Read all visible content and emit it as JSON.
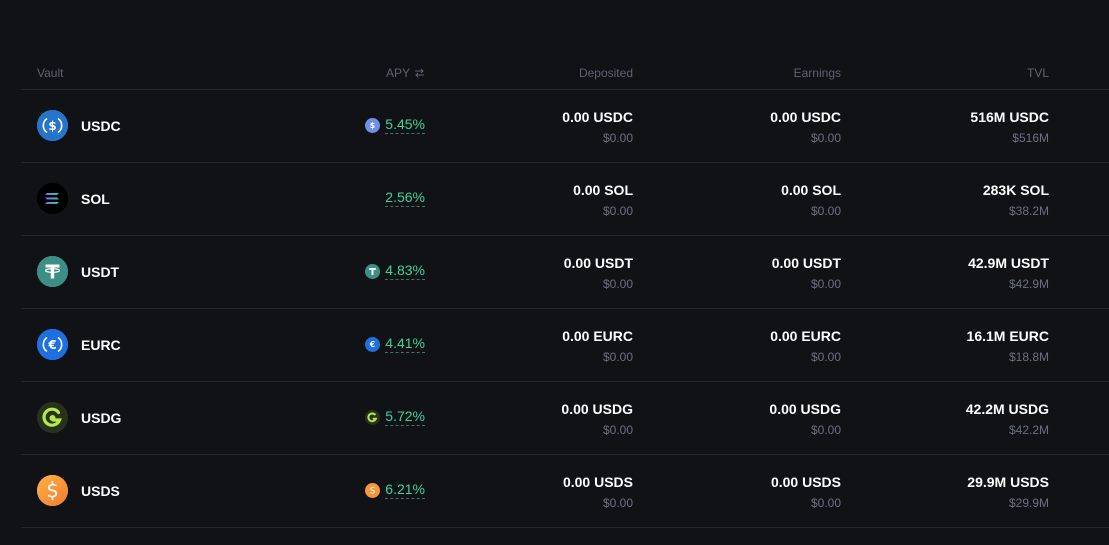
{
  "header": {
    "vault": "Vault",
    "apy": "APY",
    "deposited": "Deposited",
    "earnings": "Earnings",
    "tvl": "TVL"
  },
  "rows": [
    {
      "token": "USDC",
      "icon": "usdc-icon",
      "color": "#2775ca",
      "apy": "5.45%",
      "deposited": "0.00 USDC",
      "deposited_usd": "$0.00",
      "earnings": "0.00 USDC",
      "earnings_usd": "$0.00",
      "tvl": "516M USDC",
      "tvl_usd": "$516M"
    },
    {
      "token": "SOL",
      "icon": "sol-icon",
      "color": "#000000",
      "apy": "2.56%",
      "deposited": "0.00 SOL",
      "deposited_usd": "$0.00",
      "earnings": "0.00 SOL",
      "earnings_usd": "$0.00",
      "tvl": "283K SOL",
      "tvl_usd": "$38.2M"
    },
    {
      "token": "USDT",
      "icon": "usdt-icon",
      "color": "#3d8f86",
      "apy": "4.83%",
      "deposited": "0.00 USDT",
      "deposited_usd": "$0.00",
      "earnings": "0.00 USDT",
      "earnings_usd": "$0.00",
      "tvl": "42.9M USDT",
      "tvl_usd": "$42.9M"
    },
    {
      "token": "EURC",
      "icon": "eurc-icon",
      "color": "#1f6fe0",
      "apy": "4.41%",
      "deposited": "0.00 EURC",
      "deposited_usd": "$0.00",
      "earnings": "0.00 EURC",
      "earnings_usd": "$0.00",
      "tvl": "16.1M EURC",
      "tvl_usd": "$18.8M"
    },
    {
      "token": "USDG",
      "icon": "usdg-icon",
      "color": "#2a3a1a",
      "apy": "5.72%",
      "deposited": "0.00 USDG",
      "deposited_usd": "$0.00",
      "earnings": "0.00 USDG",
      "earnings_usd": "$0.00",
      "tvl": "42.2M USDG",
      "tvl_usd": "$42.2M"
    },
    {
      "token": "USDS",
      "icon": "usds-icon",
      "color": "#f5a03a",
      "apy": "6.21%",
      "deposited": "0.00 USDS",
      "deposited_usd": "$0.00",
      "earnings": "0.00 USDS",
      "earnings_usd": "$0.00",
      "tvl": "29.9M USDS",
      "tvl_usd": "$29.9M"
    }
  ]
}
